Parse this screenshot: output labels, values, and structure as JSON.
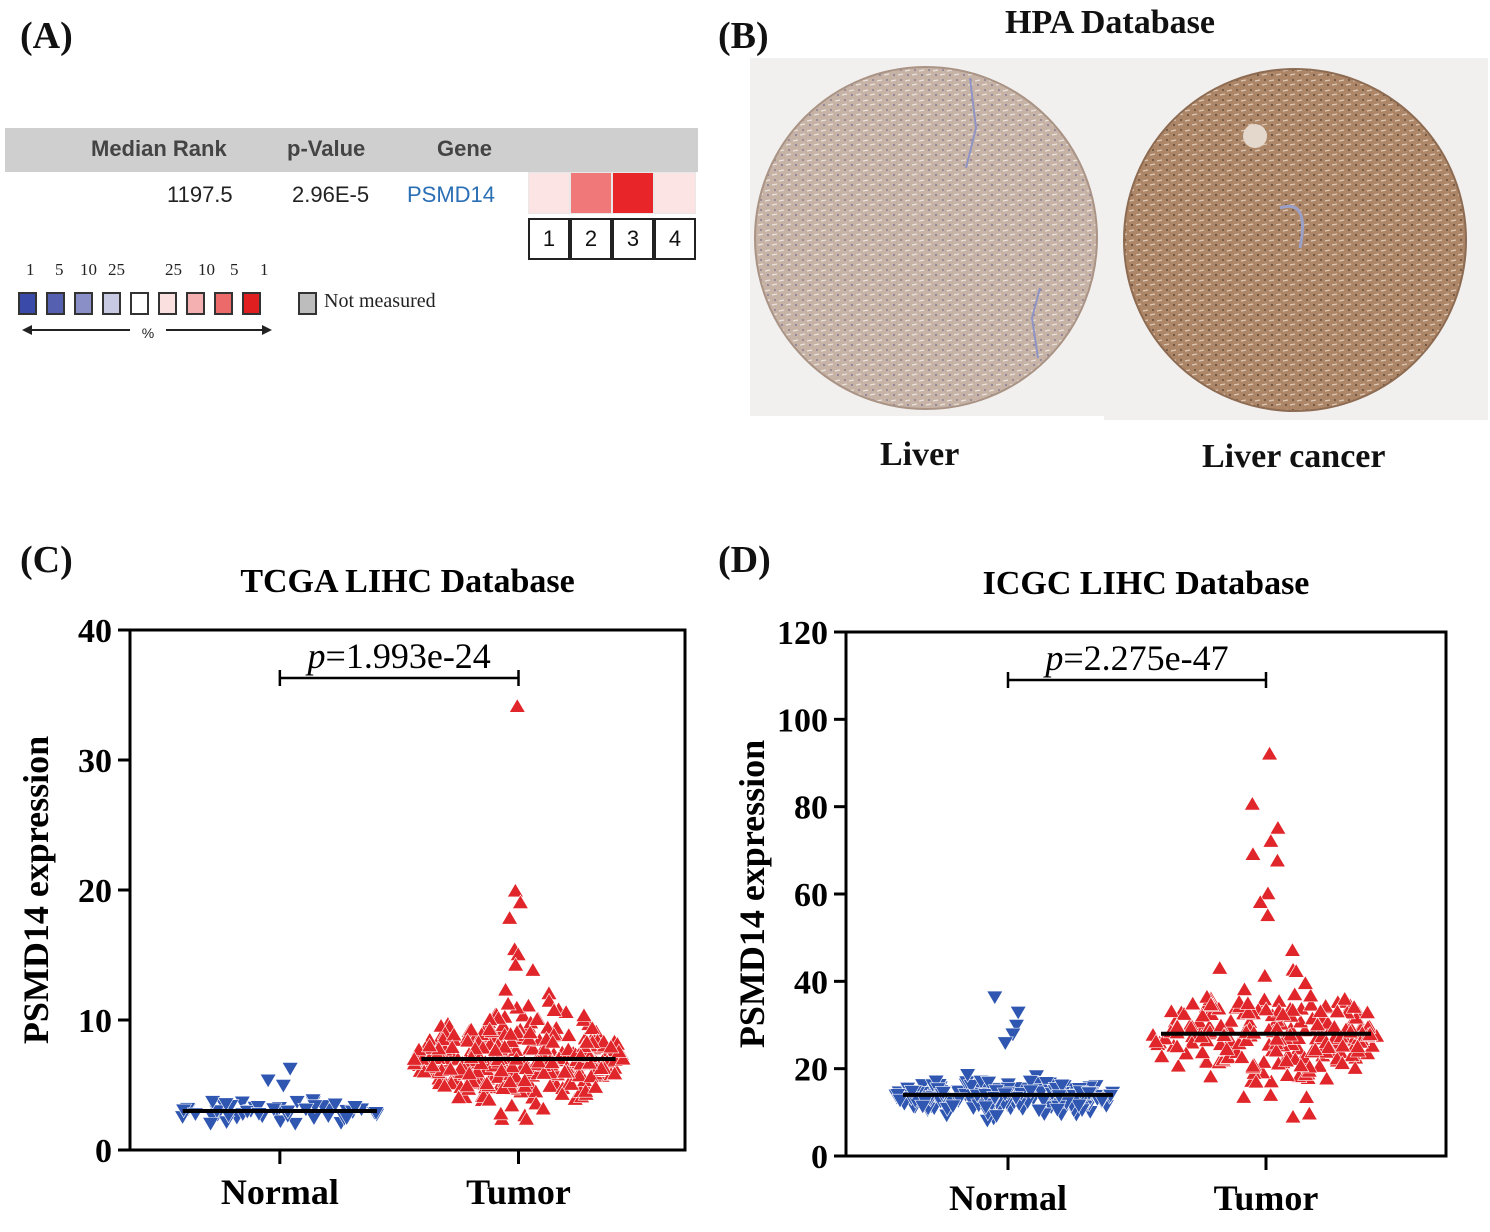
{
  "panels": {
    "a": {
      "label": "(A)",
      "header": {
        "median_rank": "Median Rank",
        "p_value": "p-Value",
        "gene": "Gene"
      },
      "row": {
        "median_rank": "1197.5",
        "p_value": "2.96E-5",
        "gene": "PSMD14"
      },
      "gene_color": "#2a6fb5",
      "heat_colors": [
        "#fde4e4",
        "#f07878",
        "#e8262a",
        "#fde4e4"
      ],
      "rank_boxes": [
        "1",
        "2",
        "3",
        "4"
      ],
      "legend": {
        "numbers": [
          "1",
          "5",
          "10",
          "25",
          "25",
          "10",
          "5",
          "1"
        ],
        "swatch_colors": [
          "#3a4aa8",
          "#5560b0",
          "#8a8fc8",
          "#c8cae4",
          "#ffffff",
          "#fbe0e0",
          "#f4b0b0",
          "#ec6a6a",
          "#e02020"
        ],
        "percent": "%",
        "not_measured": "Not measured",
        "not_measured_color": "#bdbdbd"
      }
    },
    "b": {
      "label": "(B)",
      "title": "HPA Database",
      "images": [
        {
          "name": "Liver",
          "fill": "#c8b4a6",
          "ring": "#a89080"
        },
        {
          "name": "Liver cancer",
          "fill": "#b08a6c",
          "ring": "#8e6a50"
        }
      ]
    },
    "c": {
      "label": "(C)"
    },
    "d": {
      "label": "(D)"
    }
  },
  "chart_data": [
    {
      "type": "scatter",
      "title": "TCGA LIHC Database",
      "ylabel": "PSMD14 expression",
      "xlabel": "",
      "categories": [
        "Normal",
        "Tumor"
      ],
      "ylim": [
        0,
        40
      ],
      "yticks": [
        0,
        10,
        20,
        30,
        40
      ],
      "p_text": "1.993e-24",
      "p_symbol": "p",
      "medians": [
        3.0,
        7.0
      ],
      "series": [
        {
          "name": "Normal",
          "color": "#2f56b0",
          "marker": "triangle-down",
          "count": 55,
          "min": 1.6,
          "max": 6.3,
          "center": 3.0,
          "spread": 0.9,
          "outliers": [
            6.3,
            5.4,
            5.0
          ]
        },
        {
          "name": "Tumor",
          "color": "#e0262a",
          "marker": "triangle-up",
          "count": 370,
          "min": 2.0,
          "max": 34.1,
          "center": 7.0,
          "spread": 2.8,
          "outliers": [
            34.1,
            19.9,
            19.0,
            17.8,
            15.4,
            15.0,
            14.2,
            13.8
          ]
        }
      ]
    },
    {
      "type": "scatter",
      "title": "ICGC LIHC Database",
      "ylabel": "PSMD14 expression",
      "xlabel": "",
      "categories": [
        "Normal",
        "Tumor"
      ],
      "ylim": [
        0,
        120
      ],
      "yticks": [
        0,
        20,
        40,
        60,
        80,
        100,
        120
      ],
      "p_text": "2.275e-47",
      "p_symbol": "p",
      "medians": [
        14.0,
        28.0
      ],
      "series": [
        {
          "name": "Normal",
          "color": "#2f56b0",
          "marker": "triangle-down",
          "count": 200,
          "min": 7.5,
          "max": 36.5,
          "center": 13.5,
          "spread": 3.5,
          "outliers": [
            36.5,
            33.0,
            30.0,
            28.0,
            26.0
          ]
        },
        {
          "name": "Tumor",
          "color": "#e0262a",
          "marker": "triangle-up",
          "count": 240,
          "min": 6.5,
          "max": 92.0,
          "center": 27.0,
          "spread": 10.0,
          "outliers": [
            92.0,
            80.5,
            75.0,
            72.0,
            69.0,
            67.5,
            60.0,
            58.0,
            55.0
          ]
        }
      ]
    }
  ]
}
